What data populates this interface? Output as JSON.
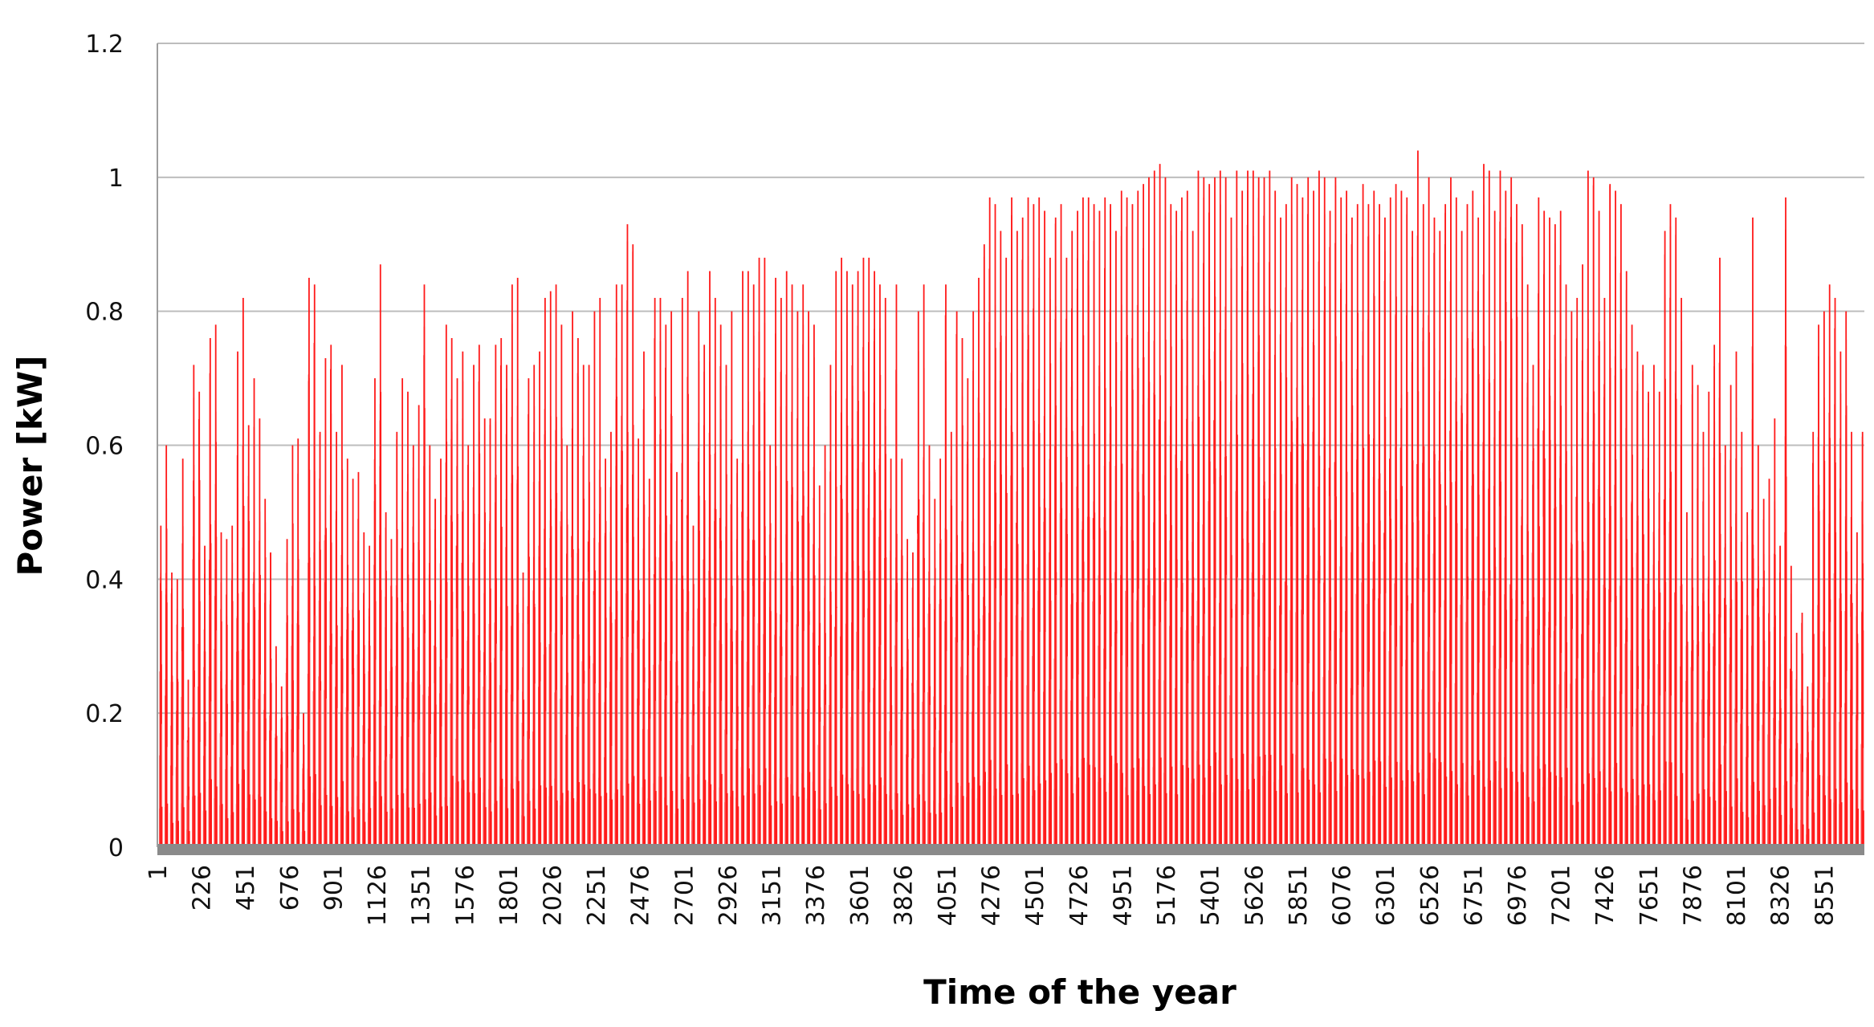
{
  "chart_data": {
    "type": "bar",
    "title": "",
    "xlabel": "Time of the year",
    "ylabel": "Power [kW]",
    "ylim": [
      0,
      1.2
    ],
    "grid": true,
    "legend": "none",
    "x_range": [
      1,
      8760
    ],
    "y_tick_labels": [
      "0",
      "0.2",
      "0.4",
      "0.6",
      "0.8",
      "1",
      "1.2"
    ],
    "x_tick_labels": [
      "1",
      "226",
      "451",
      "676",
      "901",
      "1126",
      "1351",
      "1576",
      "1801",
      "2026",
      "2251",
      "2476",
      "2701",
      "2926",
      "3151",
      "3376",
      "3601",
      "3826",
      "4051",
      "4276",
      "4501",
      "4726",
      "4951",
      "5176",
      "5401",
      "5626",
      "5851",
      "6076",
      "6301",
      "6526",
      "6751",
      "6976",
      "7201",
      "7426",
      "7651",
      "7876",
      "8101",
      "8326",
      "8551"
    ],
    "series": [
      {
        "values_note": "",
        "color": "#ff1a1a",
        "light_color": "#ff9a9a",
        "daily_peak": [
          0.48,
          0.6,
          0.41,
          0.4,
          0.58,
          0.25,
          0.72,
          0.68,
          0.45,
          0.76,
          0.78,
          0.47,
          0.46,
          0.48,
          0.74,
          0.82,
          0.63,
          0.7,
          0.64,
          0.52,
          0.44,
          0.3,
          0.24,
          0.46,
          0.6,
          0.61,
          0.2,
          0.85,
          0.84,
          0.62,
          0.73,
          0.75,
          0.62,
          0.72,
          0.58,
          0.55,
          0.56,
          0.47,
          0.45,
          0.7,
          0.87,
          0.5,
          0.46,
          0.62,
          0.7,
          0.68,
          0.6,
          0.66,
          0.84,
          0.6,
          0.52,
          0.58,
          0.78,
          0.76,
          0.7,
          0.74,
          0.6,
          0.72,
          0.75,
          0.64,
          0.64,
          0.75,
          0.76,
          0.72,
          0.84,
          0.85,
          0.41,
          0.7,
          0.72,
          0.74,
          0.82,
          0.83,
          0.84,
          0.78,
          0.6,
          0.8,
          0.76,
          0.72,
          0.72,
          0.8,
          0.82,
          0.58,
          0.62,
          0.84,
          0.84,
          0.93,
          0.9,
          0.61,
          0.74,
          0.55,
          0.82,
          0.82,
          0.78,
          0.8,
          0.56,
          0.82,
          0.86,
          0.48,
          0.8,
          0.75,
          0.86,
          0.82,
          0.78,
          0.72,
          0.8,
          0.58,
          0.86,
          0.86,
          0.84,
          0.88,
          0.88,
          0.6,
          0.85,
          0.82,
          0.86,
          0.84,
          0.8,
          0.84,
          0.8,
          0.78,
          0.54,
          0.6,
          0.72,
          0.86,
          0.88,
          0.86,
          0.84,
          0.86,
          0.88,
          0.88,
          0.86,
          0.84,
          0.82,
          0.58,
          0.84,
          0.58,
          0.46,
          0.44,
          0.8,
          0.84,
          0.6,
          0.52,
          0.58,
          0.84,
          0.62,
          0.8,
          0.76,
          0.7,
          0.8,
          0.85,
          0.9,
          0.97,
          0.96,
          0.92,
          0.88,
          0.97,
          0.92,
          0.94,
          0.97,
          0.96,
          0.97,
          0.95,
          0.88,
          0.94,
          0.96,
          0.88,
          0.92,
          0.95,
          0.97,
          0.97,
          0.96,
          0.95,
          0.97,
          0.96,
          0.92,
          0.98,
          0.97,
          0.96,
          0.98,
          0.99,
          1.0,
          1.01,
          1.02,
          1.0,
          0.96,
          0.95,
          0.97,
          0.98,
          0.92,
          1.01,
          1.0,
          0.99,
          1.0,
          1.01,
          1.0,
          0.94,
          1.01,
          0.98,
          1.01,
          1.01,
          1.0,
          1.0,
          1.01,
          0.98,
          0.94,
          0.96,
          1.0,
          0.99,
          0.97,
          1.0,
          0.98,
          1.01,
          1.0,
          0.95,
          1.0,
          0.97,
          0.98,
          0.94,
          0.96,
          0.99,
          0.96,
          0.98,
          0.96,
          0.94,
          0.97,
          0.99,
          0.98,
          0.97,
          0.92,
          1.04,
          0.96,
          1.0,
          0.94,
          0.92,
          0.96,
          1.0,
          0.97,
          0.92,
          0.96,
          0.98,
          0.94,
          1.02,
          1.01,
          0.95,
          1.01,
          0.98,
          1.0,
          0.96,
          0.93,
          0.84,
          0.72,
          0.97,
          0.95,
          0.94,
          0.93,
          0.95,
          0.84,
          0.8,
          0.82,
          0.87,
          1.01,
          1.0,
          0.95,
          0.82,
          0.99,
          0.98,
          0.96,
          0.86,
          0.78,
          0.74,
          0.72,
          0.68,
          0.72,
          0.68,
          0.92,
          0.96,
          0.94,
          0.82,
          0.5,
          0.72,
          0.69,
          0.62,
          0.68,
          0.75,
          0.88,
          0.6,
          0.69,
          0.74,
          0.62,
          0.5,
          0.94,
          0.6,
          0.52,
          0.55,
          0.64,
          0.45,
          0.97,
          0.42,
          0.32,
          0.35,
          0.24,
          0.62,
          0.78,
          0.8,
          0.84,
          0.82,
          0.74,
          0.8,
          0.62,
          0.47,
          0.62
        ],
        "daily_spread": "bars drawn per hour from 1 to 8760; hourly values follow a daily solar profile peaking at the daily_peak value"
      }
    ]
  }
}
